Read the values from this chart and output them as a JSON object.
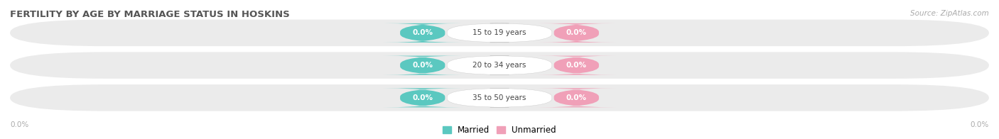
{
  "title": "FERTILITY BY AGE BY MARRIAGE STATUS IN HOSKINS",
  "source": "Source: ZipAtlas.com",
  "categories": [
    "15 to 19 years",
    "20 to 34 years",
    "35 to 50 years"
  ],
  "married_values": [
    0.0,
    0.0,
    0.0
  ],
  "unmarried_values": [
    0.0,
    0.0,
    0.0
  ],
  "married_color": "#5bc8c0",
  "unmarried_color": "#f0a0b8",
  "bar_bg_color": "#e8e8e8",
  "row_bg_color": "#ebebeb",
  "title_color": "#555555",
  "title_fontsize": 9.5,
  "source_fontsize": 7.5,
  "label_fontsize": 7.5,
  "value_fontsize": 7.5,
  "legend_fontsize": 8.5,
  "left_axis_label": "0.0%",
  "right_axis_label": "0.0%",
  "fig_width": 14.06,
  "fig_height": 1.96
}
